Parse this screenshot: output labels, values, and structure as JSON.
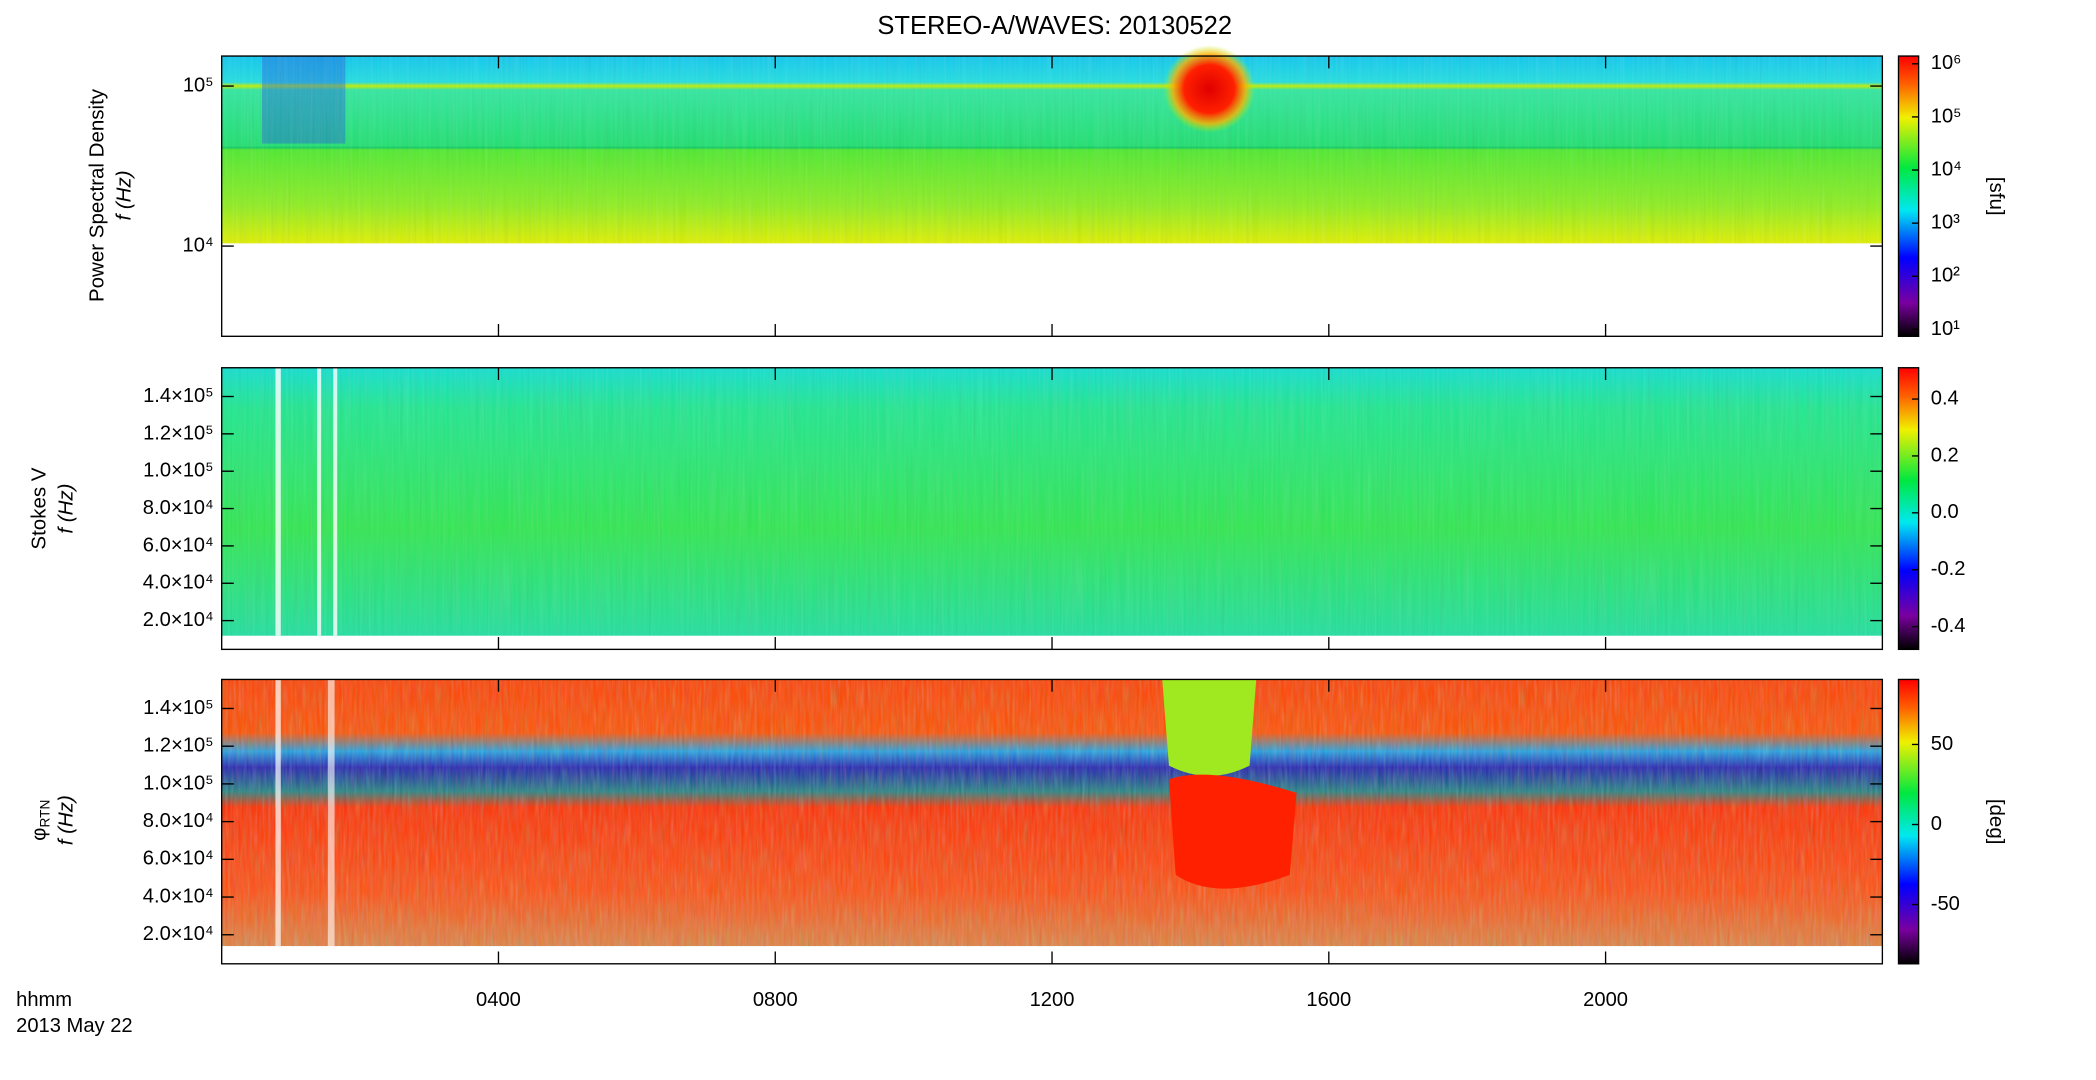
{
  "title": "STEREO-A/WAVES: 20130522",
  "x_label_lines": [
    "hhmm",
    "2013 May 22"
  ],
  "chart_data": [
    {
      "type": "heatmap",
      "ylabel_lines": [
        "Power Spectral Density",
        "f (Hz)"
      ],
      "log_y": true,
      "ylim": [
        2730,
        154000
      ],
      "yticks": [
        {
          "value": 10000,
          "label": "10⁴"
        },
        {
          "value": 100000,
          "label": "10⁵"
        }
      ],
      "colorbar": {
        "label": "[sfu]",
        "log": true,
        "lim": [
          7.4,
          1400000
        ],
        "ticks": [
          {
            "value": 10,
            "label": "10¹"
          },
          {
            "value": 100,
            "label": "10²"
          },
          {
            "value": 1000,
            "label": "10³"
          },
          {
            "value": 10000,
            "label": "10⁴"
          },
          {
            "value": 100000,
            "label": "10⁵"
          },
          {
            "value": 1000000,
            "label": "10⁶"
          }
        ]
      }
    },
    {
      "type": "heatmap",
      "ylabel_lines": [
        "Stokes V",
        "f (Hz)"
      ],
      "log_y": false,
      "ylim": [
        4600,
        155400
      ],
      "yticks": [
        {
          "value": 20000,
          "label": "2.0×10⁴"
        },
        {
          "value": 40000,
          "label": "4.0×10⁴"
        },
        {
          "value": 60000,
          "label": "6.0×10⁴"
        },
        {
          "value": 80000,
          "label": "8.0×10⁴"
        },
        {
          "value": 100000,
          "label": "1.0×10⁵"
        },
        {
          "value": 120000,
          "label": "1.2×10⁵"
        },
        {
          "value": 140000,
          "label": "1.4×10⁵"
        }
      ],
      "colorbar": {
        "label": "",
        "log": false,
        "lim": [
          -0.48,
          0.51
        ],
        "ticks": [
          -0.4,
          -0.2,
          {
            "value": 0,
            "label": "0.0"
          },
          0.2,
          0.4
        ]
      }
    },
    {
      "type": "heatmap",
      "ylabel_symbol": "φ",
      "ylabel_subscript": "RTN",
      "ylabel_unit": "f (Hz)",
      "log_y": false,
      "ylim": [
        4600,
        155400
      ],
      "yticks": [
        {
          "value": 20000,
          "label": "2.0×10⁴"
        },
        {
          "value": 40000,
          "label": "4.0×10⁴"
        },
        {
          "value": 60000,
          "label": "6.0×10⁴"
        },
        {
          "value": 80000,
          "label": "8.0×10⁴"
        },
        {
          "value": 100000,
          "label": "1.0×10⁵"
        },
        {
          "value": 120000,
          "label": "1.2×10⁵"
        },
        {
          "value": 140000,
          "label": "1.4×10⁵"
        }
      ],
      "colorbar": {
        "label": "[deg]",
        "log": false,
        "lim": [
          -87,
          90.6
        ],
        "ticks": [
          -50,
          0,
          50
        ]
      },
      "xlim": [
        0,
        24
      ],
      "xticks": [
        {
          "value": 4,
          "label": "0400"
        },
        {
          "value": 8,
          "label": "0800"
        },
        {
          "value": 12,
          "label": "1200"
        },
        {
          "value": 16,
          "label": "1600"
        },
        {
          "value": 20,
          "label": "2000"
        }
      ]
    }
  ]
}
